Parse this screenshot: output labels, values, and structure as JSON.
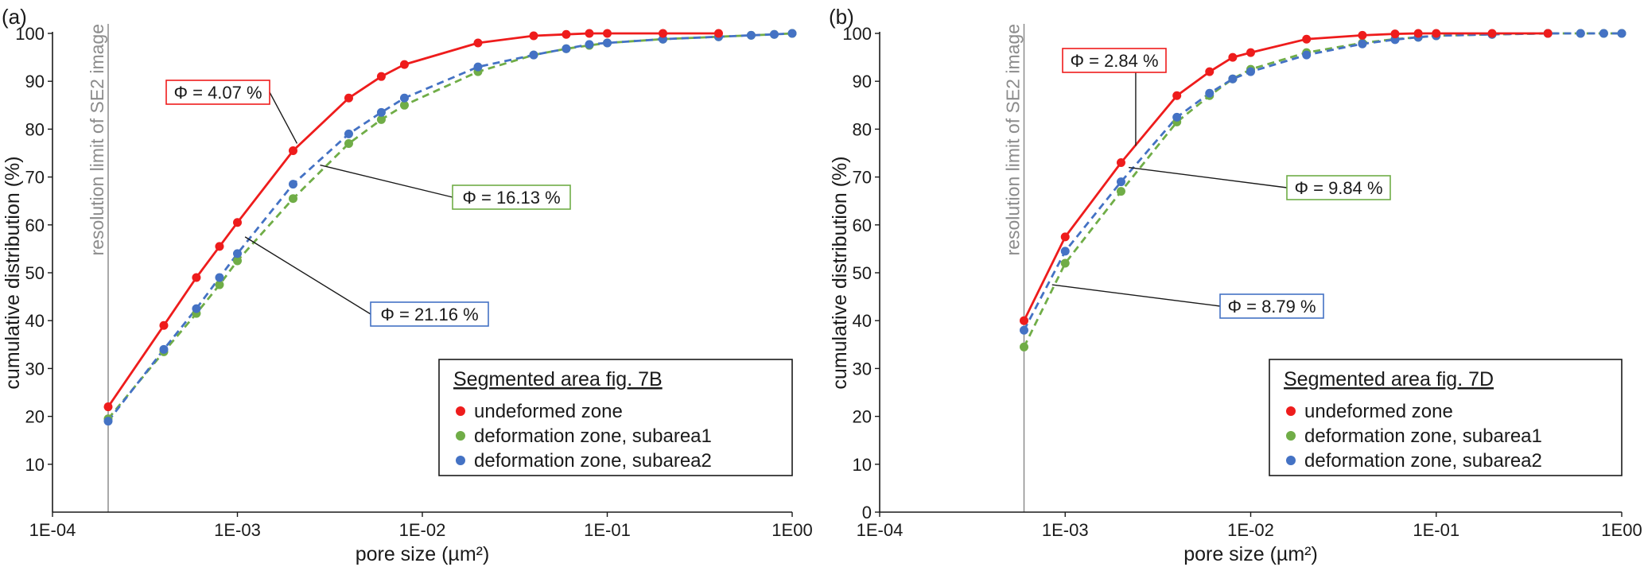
{
  "colors": {
    "undeformed": "#ee1c1c",
    "subarea1": "#70ad47",
    "subarea2": "#4472c4",
    "resolution_line": "#8c8c8c",
    "axis": "#1a1a1a"
  },
  "chart_data": [
    {
      "type": "line",
      "panel_label": "(a)",
      "xscale": "log",
      "xlim": [
        0.0001,
        1
      ],
      "ylim": [
        0,
        100
      ],
      "x_ticks": [
        0.0001,
        0.001,
        0.01,
        0.1,
        1
      ],
      "x_tick_labels": [
        "1E-04",
        "1E-03",
        "1E-02",
        "1E-01",
        "1E00"
      ],
      "y_ticks": [
        10,
        20,
        30,
        40,
        50,
        60,
        70,
        80,
        90,
        100
      ],
      "y_tick_labels": [
        "10",
        "20",
        "30",
        "40",
        "50",
        "60",
        "70",
        "80",
        "90",
        "100"
      ],
      "xlabel": "pore size (µm²)",
      "ylabel": "cumulative distribution (%)",
      "resolution_limit": {
        "x": 0.0002,
        "label": "resolution limit of SE2 image"
      },
      "legend": {
        "title": "Segmented area fig. 7B",
        "entries": [
          "undeformed zone",
          "deformation zone, subarea1",
          "deformation zone, subarea2"
        ],
        "position": "bottom-right"
      },
      "series": [
        {
          "name": "undeformed zone",
          "color_key": "undeformed",
          "dashed": false,
          "points": [
            [
              0.0002,
              22
            ],
            [
              0.0004,
              39
            ],
            [
              0.0006,
              49
            ],
            [
              0.0008,
              55.5
            ],
            [
              0.001,
              60.5
            ],
            [
              0.002,
              75.5
            ],
            [
              0.004,
              86.5
            ],
            [
              0.006,
              91
            ],
            [
              0.008,
              93.5
            ],
            [
              0.02,
              98
            ],
            [
              0.04,
              99.5
            ],
            [
              0.06,
              99.8
            ],
            [
              0.08,
              100
            ],
            [
              0.1,
              100
            ],
            [
              0.2,
              100
            ],
            [
              0.4,
              100
            ]
          ]
        },
        {
          "name": "deformation zone, subarea1",
          "color_key": "subarea1",
          "dashed": true,
          "points": [
            [
              0.0002,
              19.5
            ],
            [
              0.0004,
              33.5
            ],
            [
              0.0006,
              41.5
            ],
            [
              0.0008,
              47.5
            ],
            [
              0.001,
              52.5
            ],
            [
              0.002,
              65.5
            ],
            [
              0.004,
              77
            ],
            [
              0.006,
              82
            ],
            [
              0.008,
              85
            ],
            [
              0.02,
              92
            ],
            [
              0.04,
              95.5
            ],
            [
              0.06,
              96.8
            ],
            [
              0.08,
              97.5
            ],
            [
              0.1,
              98
            ],
            [
              0.2,
              98.8
            ],
            [
              0.4,
              99.3
            ],
            [
              0.6,
              99.6
            ],
            [
              0.8,
              99.8
            ],
            [
              1,
              100
            ]
          ]
        },
        {
          "name": "deformation zone, subarea2",
          "color_key": "subarea2",
          "dashed": true,
          "points": [
            [
              0.0002,
              19
            ],
            [
              0.0004,
              34
            ],
            [
              0.0006,
              42.5
            ],
            [
              0.0008,
              49
            ],
            [
              0.001,
              54
            ],
            [
              0.002,
              68.5
            ],
            [
              0.004,
              79
            ],
            [
              0.006,
              83.5
            ],
            [
              0.008,
              86.5
            ],
            [
              0.02,
              93
            ],
            [
              0.04,
              95.5
            ],
            [
              0.06,
              96.8
            ],
            [
              0.08,
              97.7
            ],
            [
              0.1,
              98
            ],
            [
              0.2,
              98.8
            ],
            [
              0.4,
              99.3
            ],
            [
              0.6,
              99.6
            ],
            [
              0.8,
              99.8
            ],
            [
              1,
              100
            ]
          ]
        }
      ],
      "annotations": [
        {
          "text": "Φ = 4.07 %",
          "color_key": "undeformed",
          "target": [
            0.0021,
            77
          ]
        },
        {
          "text": "Φ = 16.13 %",
          "color_key": "subarea1",
          "target": [
            0.0028,
            72.5
          ]
        },
        {
          "text": "Φ = 21.16 %",
          "color_key": "subarea2",
          "target": [
            0.0011,
            57.5
          ]
        }
      ]
    },
    {
      "type": "line",
      "panel_label": "(b)",
      "xscale": "log",
      "xlim": [
        0.0001,
        1
      ],
      "ylim": [
        0,
        100
      ],
      "x_ticks": [
        0.0001,
        0.001,
        0.01,
        0.1,
        1
      ],
      "x_tick_labels": [
        "1E-04",
        "1E-03",
        "1E-02",
        "1E-01",
        "1E00"
      ],
      "y_ticks": [
        0,
        10,
        20,
        30,
        40,
        50,
        60,
        70,
        80,
        90,
        100
      ],
      "y_tick_labels": [
        "0",
        "10",
        "20",
        "30",
        "40",
        "50",
        "60",
        "70",
        "80",
        "90",
        "100"
      ],
      "xlabel": "pore size (µm²)",
      "ylabel": "cumulative distribution (%)",
      "resolution_limit": {
        "x": 0.0006,
        "label": "resolution limit of SE2 image"
      },
      "legend": {
        "title": "Segmented area fig. 7D",
        "entries": [
          "undeformed zone",
          "deformation zone, subarea1",
          "deformation zone, subarea2"
        ],
        "position": "bottom-right"
      },
      "series": [
        {
          "name": "undeformed zone",
          "color_key": "undeformed",
          "dashed": false,
          "points": [
            [
              0.0006,
              40
            ],
            [
              0.001,
              57.5
            ],
            [
              0.002,
              73
            ],
            [
              0.004,
              87
            ],
            [
              0.006,
              92
            ],
            [
              0.008,
              95
            ],
            [
              0.01,
              96
            ],
            [
              0.02,
              98.8
            ],
            [
              0.04,
              99.6
            ],
            [
              0.06,
              99.9
            ],
            [
              0.08,
              100
            ],
            [
              0.1,
              100
            ],
            [
              0.2,
              100
            ],
            [
              0.4,
              100
            ]
          ]
        },
        {
          "name": "deformation zone, subarea1",
          "color_key": "subarea1",
          "dashed": true,
          "points": [
            [
              0.0006,
              34.5
            ],
            [
              0.001,
              52
            ],
            [
              0.002,
              67
            ],
            [
              0.004,
              81.5
            ],
            [
              0.006,
              87
            ],
            [
              0.008,
              90.5
            ],
            [
              0.01,
              92.5
            ],
            [
              0.02,
              96
            ],
            [
              0.04,
              98
            ],
            [
              0.06,
              98.8
            ],
            [
              0.08,
              99.2
            ],
            [
              0.1,
              99.5
            ],
            [
              0.2,
              99.8
            ],
            [
              0.4,
              100
            ],
            [
              0.6,
              100
            ],
            [
              0.8,
              100
            ],
            [
              1,
              100
            ]
          ]
        },
        {
          "name": "deformation zone, subarea2",
          "color_key": "subarea2",
          "dashed": true,
          "points": [
            [
              0.0006,
              38
            ],
            [
              0.001,
              54.5
            ],
            [
              0.002,
              69
            ],
            [
              0.004,
              82.5
            ],
            [
              0.006,
              87.5
            ],
            [
              0.008,
              90.5
            ],
            [
              0.01,
              92
            ],
            [
              0.02,
              95.5
            ],
            [
              0.04,
              97.8
            ],
            [
              0.06,
              98.7
            ],
            [
              0.08,
              99.2
            ],
            [
              0.1,
              99.5
            ],
            [
              0.2,
              99.8
            ],
            [
              0.4,
              100
            ],
            [
              0.6,
              100
            ],
            [
              0.8,
              100
            ],
            [
              1,
              100
            ]
          ]
        }
      ],
      "annotations": [
        {
          "text": "Φ = 2.84 %",
          "color_key": "undeformed",
          "target": [
            0.0024,
            76.5
          ]
        },
        {
          "text": "Φ = 9.84 %",
          "color_key": "subarea1",
          "target": [
            0.0022,
            72
          ]
        },
        {
          "text": "Φ = 8.79 %",
          "color_key": "subarea2",
          "target": [
            0.00085,
            47.5
          ]
        }
      ]
    }
  ]
}
